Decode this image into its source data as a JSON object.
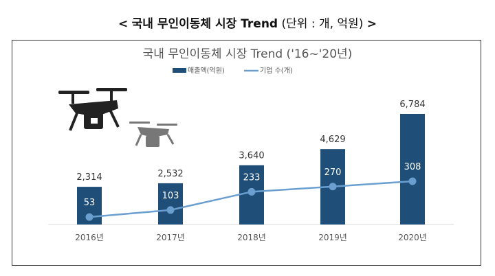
{
  "heading": {
    "left": "<",
    "title": "국내 무인이동체 시장 Trend",
    "unit": "(단위 : 개, 억원)",
    "right": ">"
  },
  "chart_data": {
    "type": "bar+line",
    "title": "국내 무인이동체 시장 Trend ('16~'20년)",
    "categories": [
      "2016년",
      "2017년",
      "2018년",
      "2019년",
      "2020년"
    ],
    "series": [
      {
        "name": "매출액(억원)",
        "type": "bar",
        "color": "#1F4E79",
        "values": [
          2314,
          2532,
          3640,
          4629,
          6784
        ],
        "labels": [
          "2,314",
          "2,532",
          "3,640",
          "4,629",
          "6,784"
        ]
      },
      {
        "name": "기업 수(개)",
        "type": "line",
        "color": "#6A9FD0",
        "values": [
          53,
          103,
          233,
          270,
          308
        ],
        "labels": [
          "53",
          "103",
          "233",
          "270",
          "308"
        ]
      }
    ],
    "legend": "top",
    "grid": false
  },
  "icons": [
    "drone-icon",
    "drone-icon"
  ]
}
